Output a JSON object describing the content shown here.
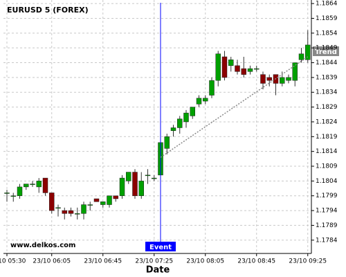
{
  "chart_data": {
    "type": "candlestick",
    "title": "EURUSD 5 (FOREX)",
    "watermark": "www.delkos.com",
    "x_label": "Date",
    "categories": [
      "23/10 05:30",
      null,
      null,
      null,
      null,
      null,
      null,
      "23/10 06:05",
      null,
      null,
      null,
      null,
      null,
      null,
      null,
      "23/10 06:45",
      null,
      null,
      null,
      null,
      null,
      null,
      null,
      "23/10 07:25",
      null,
      null,
      null,
      null,
      null,
      null,
      null,
      "23/10 08:05",
      null,
      null,
      null,
      null,
      null,
      null,
      null,
      "23/10 08:45",
      null,
      null,
      null,
      null,
      null,
      null,
      null,
      "23/10 09:25"
    ],
    "series": [
      {
        "up_color": "#00a000",
        "down_color": "#8b0000",
        "open": [
          1.18,
          1.1799,
          1.1799,
          1.1802,
          1.1803,
          1.1802,
          1.1805,
          1.18,
          1.1795,
          1.1794,
          1.1794,
          1.1793,
          1.1793,
          1.1796,
          1.1798,
          1.1796,
          1.1796,
          1.1799,
          1.1799,
          1.1804,
          1.1807,
          1.1799,
          1.1806,
          1.1805,
          1.1806,
          1.1815,
          1.1821,
          1.1822,
          1.1824,
          1.1826,
          1.183,
          1.1831,
          1.1833,
          1.1838,
          1.1846,
          1.1843,
          1.1843,
          1.1842,
          1.1841,
          1.1842,
          1.184,
          1.1839,
          1.184,
          1.1837,
          1.1838,
          1.1838,
          1.1845,
          1.1845
        ],
        "high": [
          1.1801,
          1.18,
          1.1803,
          1.1803,
          1.1804,
          1.1805,
          1.1805,
          1.18,
          1.1796,
          1.1795,
          1.1795,
          1.1795,
          1.1797,
          1.1797,
          1.1798,
          1.1797,
          1.1799,
          1.1799,
          1.1806,
          1.1807,
          1.1808,
          1.1807,
          1.1808,
          1.1806,
          1.1818,
          1.182,
          1.1823,
          1.1826,
          1.1828,
          1.1829,
          1.1833,
          1.1833,
          1.1839,
          1.1848,
          1.1848,
          1.1846,
          1.1845,
          1.1846,
          1.1843,
          1.1843,
          1.1841,
          1.184,
          1.184,
          1.1841,
          1.184,
          1.1844,
          1.1849,
          1.1855
        ],
        "low": [
          1.1797,
          1.1797,
          1.1798,
          1.1801,
          1.1802,
          1.18,
          1.1799,
          1.1793,
          1.1792,
          1.1791,
          1.1792,
          1.1791,
          1.1791,
          1.1794,
          1.1797,
          1.1795,
          1.1795,
          1.1797,
          1.1798,
          1.1803,
          1.1798,
          1.1798,
          1.1803,
          1.1804,
          1.1804,
          1.1813,
          1.1819,
          1.182,
          1.1822,
          1.1825,
          1.1829,
          1.183,
          1.1832,
          1.1836,
          1.1838,
          1.1841,
          1.184,
          1.1839,
          1.184,
          1.1841,
          1.1835,
          1.1836,
          1.1833,
          1.1836,
          1.1837,
          1.1836,
          1.1844,
          1.1844
        ],
        "close": [
          1.18,
          1.1799,
          1.1802,
          1.1803,
          1.1803,
          1.1804,
          1.18,
          1.1794,
          1.1795,
          1.1793,
          1.1793,
          1.1793,
          1.1796,
          1.1796,
          1.1797,
          1.1797,
          1.1799,
          1.1798,
          1.1805,
          1.1807,
          1.1799,
          1.1804,
          1.1806,
          1.1805,
          1.1817,
          1.1819,
          1.1822,
          1.1825,
          1.1827,
          1.1829,
          1.1832,
          1.1832,
          1.1838,
          1.1847,
          1.1839,
          1.1845,
          1.1841,
          1.184,
          1.1842,
          1.1842,
          1.1837,
          1.1838,
          1.1837,
          1.1839,
          1.1839,
          1.1844,
          1.1847,
          1.185
        ]
      }
    ],
    "event": {
      "label": "Event",
      "color": "#0000ff"
    },
    "trend": {
      "label": "Trend",
      "values": [
        1.1812,
        1.1846
      ],
      "color": "#888888"
    },
    "ylim": [
      1.17795,
      1.18652
    ],
    "yticks": [
      1.1784,
      1.1789,
      1.1794,
      1.1799,
      1.1804,
      1.1809,
      1.1814,
      1.1819,
      1.1824,
      1.1829,
      1.1834,
      1.1839,
      1.1844,
      1.1849,
      1.1854,
      1.1859,
      1.1864
    ],
    "grid": true
  }
}
